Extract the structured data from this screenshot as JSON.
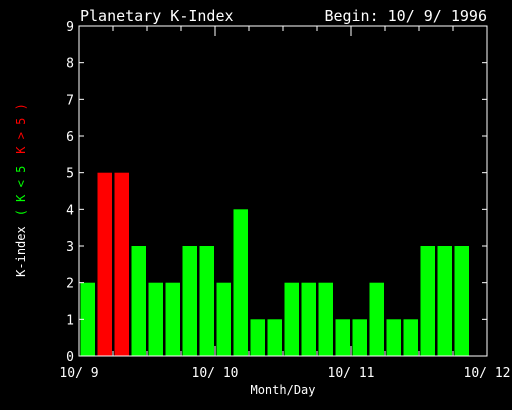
{
  "chart_data": {
    "type": "bar",
    "title": "Planetary K-Index",
    "begin_label": "Begin: 10/ 9/ 1996",
    "xlabel": "Month/Day",
    "ylabel_base": "K-index",
    "ylabel_green": "( K < 5",
    "ylabel_red": "K > 5 )",
    "ylim": [
      0,
      9
    ],
    "yticks": [
      "0",
      "1",
      "2",
      "3",
      "4",
      "5",
      "6",
      "7",
      "8",
      "9"
    ],
    "xlim_days": [
      0,
      3
    ],
    "xtick_labels": [
      "10/ 9",
      "10/ 10",
      "10/ 11",
      "10/ 12"
    ],
    "bar_interval_hours": 3,
    "values": [
      2,
      5,
      5,
      3,
      2,
      2,
      3,
      3,
      2,
      4,
      1,
      1,
      2,
      2,
      2,
      1,
      1,
      2,
      1,
      1,
      3,
      3,
      3,
      0
    ],
    "threshold": 5,
    "grid": false
  },
  "colors": {
    "background": "#000000",
    "axes": "#ffffff",
    "low": "#00ff00",
    "high": "#ff0000"
  }
}
